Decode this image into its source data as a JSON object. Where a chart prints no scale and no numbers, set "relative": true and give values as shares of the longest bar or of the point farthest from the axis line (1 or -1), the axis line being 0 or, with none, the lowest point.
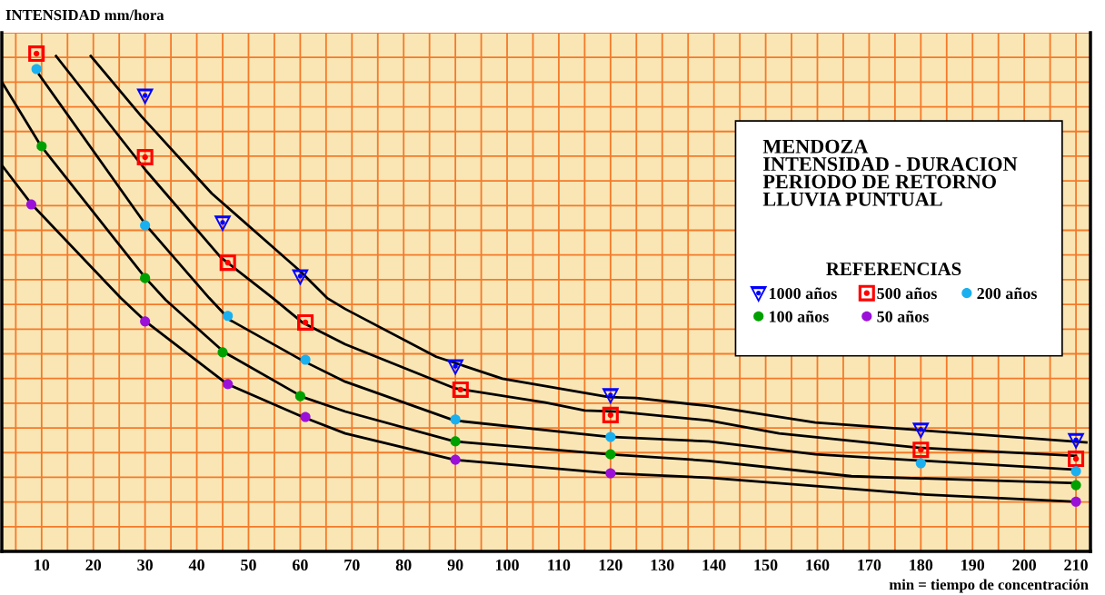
{
  "chart_data": {
    "type": "line",
    "title": "MENDOZA\nINTENSIDAD - DURACION\nPERIODO DE RETORNO\nLLUVIA PUNTUAL",
    "legend_title": "REFERENCIAS",
    "xlabel": "min = tiempo de concentración",
    "ylabel": "INTENSIDAD mm/hora",
    "relative": true,
    "xlim": [
      2.3,
      212.8
    ],
    "xticks": [
      10,
      20,
      30,
      40,
      50,
      60,
      70,
      80,
      90,
      100,
      110,
      120,
      130,
      140,
      150,
      160,
      170,
      180,
      190,
      200,
      210
    ],
    "tick_labels": "x",
    "grid": true,
    "legend": "right",
    "series": [
      {
        "name": "1000 años",
        "type": "scatter",
        "marker": "triangle",
        "color": "#0000ff",
        "x": [
          30,
          45,
          60,
          90,
          120,
          180,
          210
        ],
        "values": [
          0.916,
          0.661,
          0.553,
          0.372,
          0.314,
          0.245,
          0.224
        ]
      },
      {
        "name": "500 años",
        "type": "scatter",
        "marker": "square",
        "color": "#ff0000",
        "x": [
          9,
          30,
          46,
          61,
          91,
          120,
          180,
          210
        ],
        "values": [
          1.0,
          0.792,
          0.58,
          0.46,
          0.325,
          0.274,
          0.204,
          0.186
        ]
      },
      {
        "name": "200 años",
        "type": "scatter",
        "marker": "circle",
        "color": "#1ab0f0",
        "x": [
          9,
          30,
          46,
          61,
          90,
          120,
          180,
          210
        ],
        "values": [
          0.969,
          0.655,
          0.473,
          0.385,
          0.265,
          0.23,
          0.177,
          0.161
        ]
      },
      {
        "name": "100 años",
        "type": "scatter",
        "marker": "circle",
        "color": "#00a000",
        "x": [
          10,
          30,
          45,
          60,
          90,
          120,
          210
        ],
        "values": [
          0.814,
          0.549,
          0.4,
          0.312,
          0.221,
          0.195,
          0.133
        ]
      },
      {
        "name": "50 años",
        "type": "scatter",
        "marker": "circle",
        "color": "#9a10d8",
        "x": [
          8,
          30,
          46,
          61,
          90,
          120,
          210
        ],
        "values": [
          0.697,
          0.462,
          0.336,
          0.27,
          0.184,
          0.157,
          0.1
        ]
      },
      {
        "color": "#000000",
        "x": [
          19.5,
          29.3,
          42.9,
          59.9,
          65.2,
          68.7,
          86.3,
          99.1,
          119.7,
          125,
          139,
          159.6,
          212
        ],
        "values": [
          0.995,
          0.874,
          0.719,
          0.564,
          0.509,
          0.487,
          0.391,
          0.347,
          0.31,
          0.308,
          0.292,
          0.259,
          0.219
        ]
      },
      {
        "color": "#000000",
        "x": [
          12.8,
          30.1,
          44.6,
          54.7,
          60.4,
          68.7,
          89.8,
          107.4,
          115,
          121.4,
          139,
          152.6,
          180,
          210
        ],
        "values": [
          0.995,
          0.766,
          0.591,
          0.509,
          0.46,
          0.416,
          0.328,
          0.299,
          0.283,
          0.281,
          0.263,
          0.237,
          0.208,
          0.192
        ]
      },
      {
        "color": "#000000",
        "x": [
          9.5,
          30.2,
          42.4,
          46.4,
          60.5,
          68.7,
          89.8,
          119.7,
          139,
          159.6,
          210
        ],
        "values": [
          0.958,
          0.655,
          0.509,
          0.465,
          0.383,
          0.341,
          0.263,
          0.23,
          0.221,
          0.195,
          0.164
        ]
      },
      {
        "color": "#000000",
        "x": [
          2.5,
          9.9,
          30.1,
          34,
          45.3,
          60.5,
          68.7,
          89.8,
          119.7,
          139,
          166.6,
          210
        ],
        "values": [
          0.94,
          0.814,
          0.549,
          0.505,
          0.4,
          0.31,
          0.281,
          0.221,
          0.195,
          0.182,
          0.151,
          0.137
        ]
      },
      {
        "color": "#000000",
        "x": [
          2.3,
          8.1,
          25.3,
          30.1,
          45.9,
          60.5,
          68.7,
          89.8,
          119.7,
          139,
          179.4,
          210
        ],
        "values": [
          0.776,
          0.697,
          0.509,
          0.462,
          0.336,
          0.27,
          0.237,
          0.184,
          0.157,
          0.148,
          0.115,
          0.1
        ]
      }
    ]
  }
}
